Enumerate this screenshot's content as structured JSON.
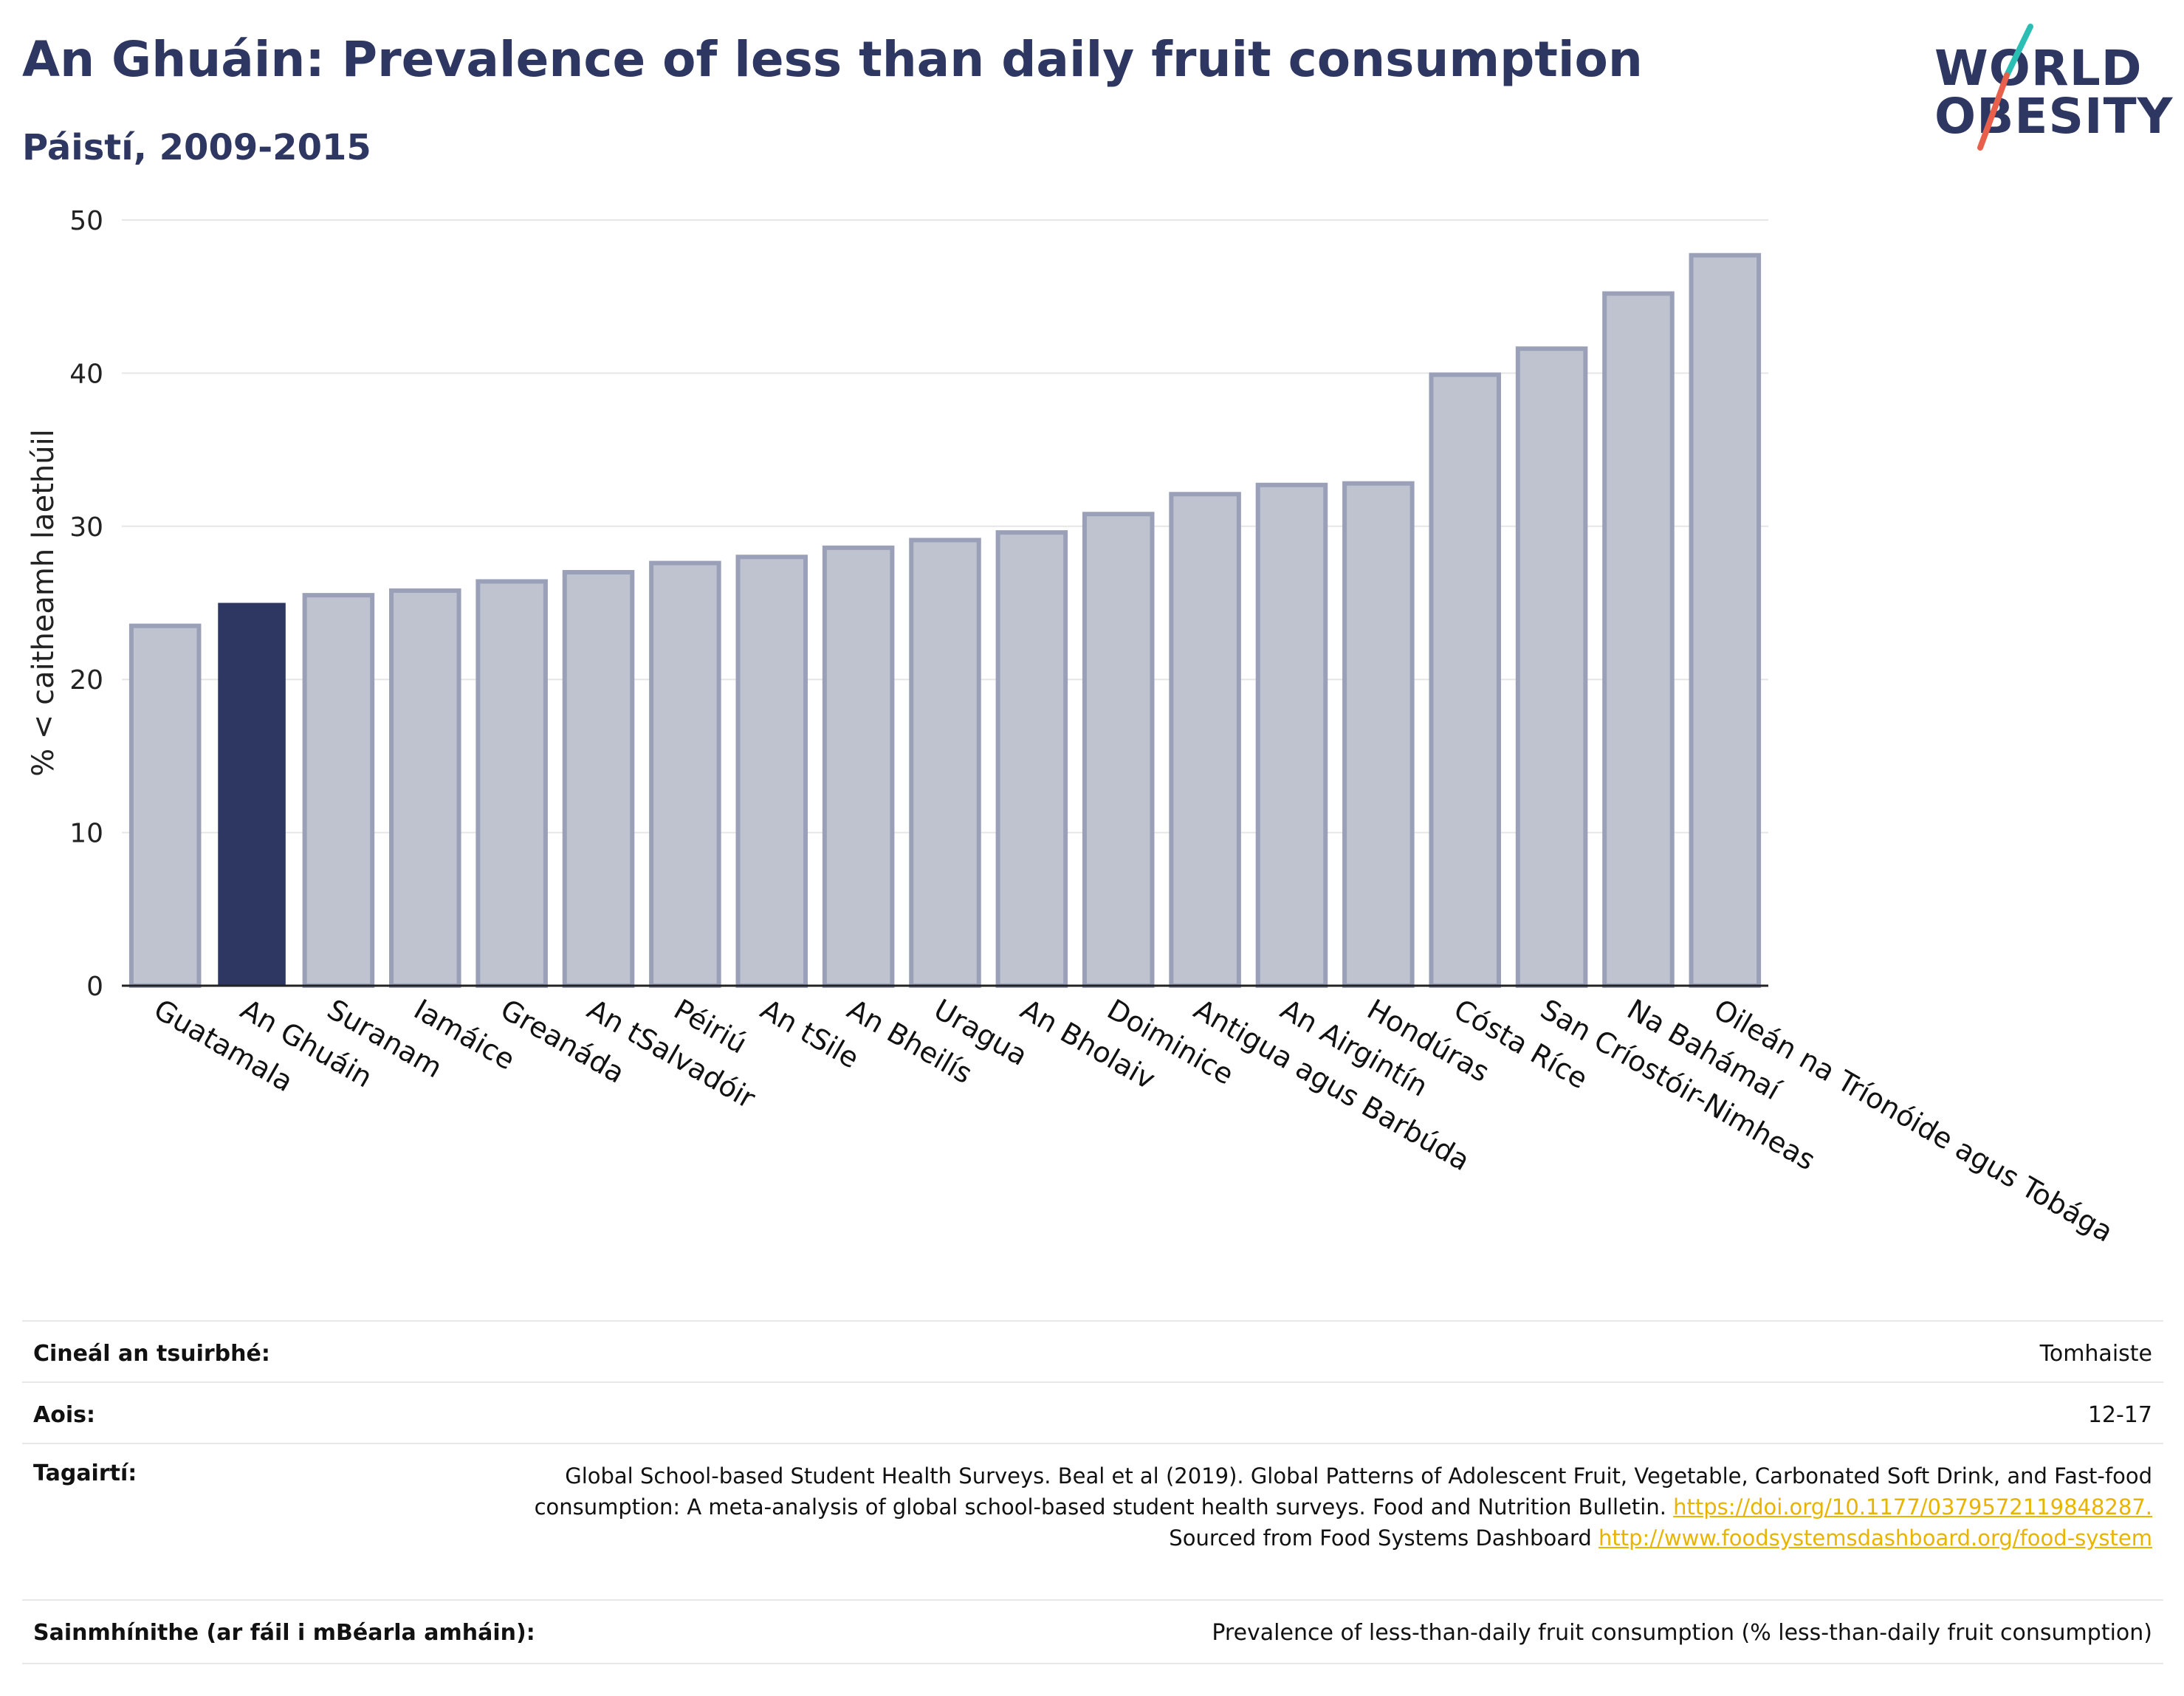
{
  "header": {
    "title": "An Ghuáin: Prevalence of less than daily fruit consumption",
    "subtitle": "Páistí, 2009-2015"
  },
  "logo": {
    "line1": "WORLD",
    "line2": "OBESITY"
  },
  "colors": {
    "highlight": "#2d3761",
    "bar": "#bfc3d0",
    "bar_border": "#9aa0b8",
    "grid": "#e6e6e6",
    "link": "#e8b400",
    "logo_teal": "#2bbfb3",
    "logo_coral": "#e8604c"
  },
  "chart_data": {
    "type": "bar",
    "title": "An Ghuáin: Prevalence of less than daily fruit consumption",
    "subtitle": "Páistí, 2009-2015",
    "ylabel": "% < caitheamh laethúil",
    "xlabel": "",
    "ylim": [
      0,
      50
    ],
    "yticks": [
      0,
      10,
      20,
      30,
      40,
      50
    ],
    "grid": true,
    "highlight": "An Ghuáin",
    "categories": [
      "Guatamala",
      "An Ghuáin",
      "Suranam",
      "Iamáice",
      "Greanáda",
      "An tSalvadóir",
      "Péiriú",
      "An tSile",
      "An Bheilís",
      "Uragua",
      "An Bholaiv",
      "Doiminice",
      "Antigua agus Barbúda",
      "An Airgintín",
      "Hondúras",
      "Cósta Ríce",
      "San Críostóir-Nimheas",
      "Na Bahámaí",
      "Oileán na Tríonóide agus Tobága"
    ],
    "values": [
      23.5,
      25.0,
      25.5,
      25.8,
      26.4,
      27.0,
      27.6,
      28.0,
      28.6,
      29.1,
      29.6,
      30.8,
      32.1,
      32.7,
      32.8,
      39.9,
      41.6,
      45.2,
      47.7
    ]
  },
  "meta": {
    "survey_type_label": "Cineál an tsuirbhé:",
    "survey_type_value": "Tomhaiste",
    "age_label": "Aois:",
    "age_value": "12-17",
    "references_label": "Tagairtí:",
    "references_text": "Global School-based Student Health Surveys. Beal et al (2019). Global Patterns of Adolescent Fruit, Vegetable, Carbonated Soft Drink, and Fast-food consumption: A meta-analysis of global school-based student health surveys. Food and Nutrition Bulletin.",
    "references_link1": "https://doi.org/10.1177/0379572119848287.",
    "references_mid": "Sourced from Food Systems Dashboard",
    "references_link2": "http://www.foodsystemsdashboard.org/food-system",
    "definitions_label": "Sainmhínithe (ar fáil i mBéarla amháin):",
    "definitions_value": "Prevalence of less-than-daily fruit consumption (% less-than-daily fruit consumption)"
  }
}
